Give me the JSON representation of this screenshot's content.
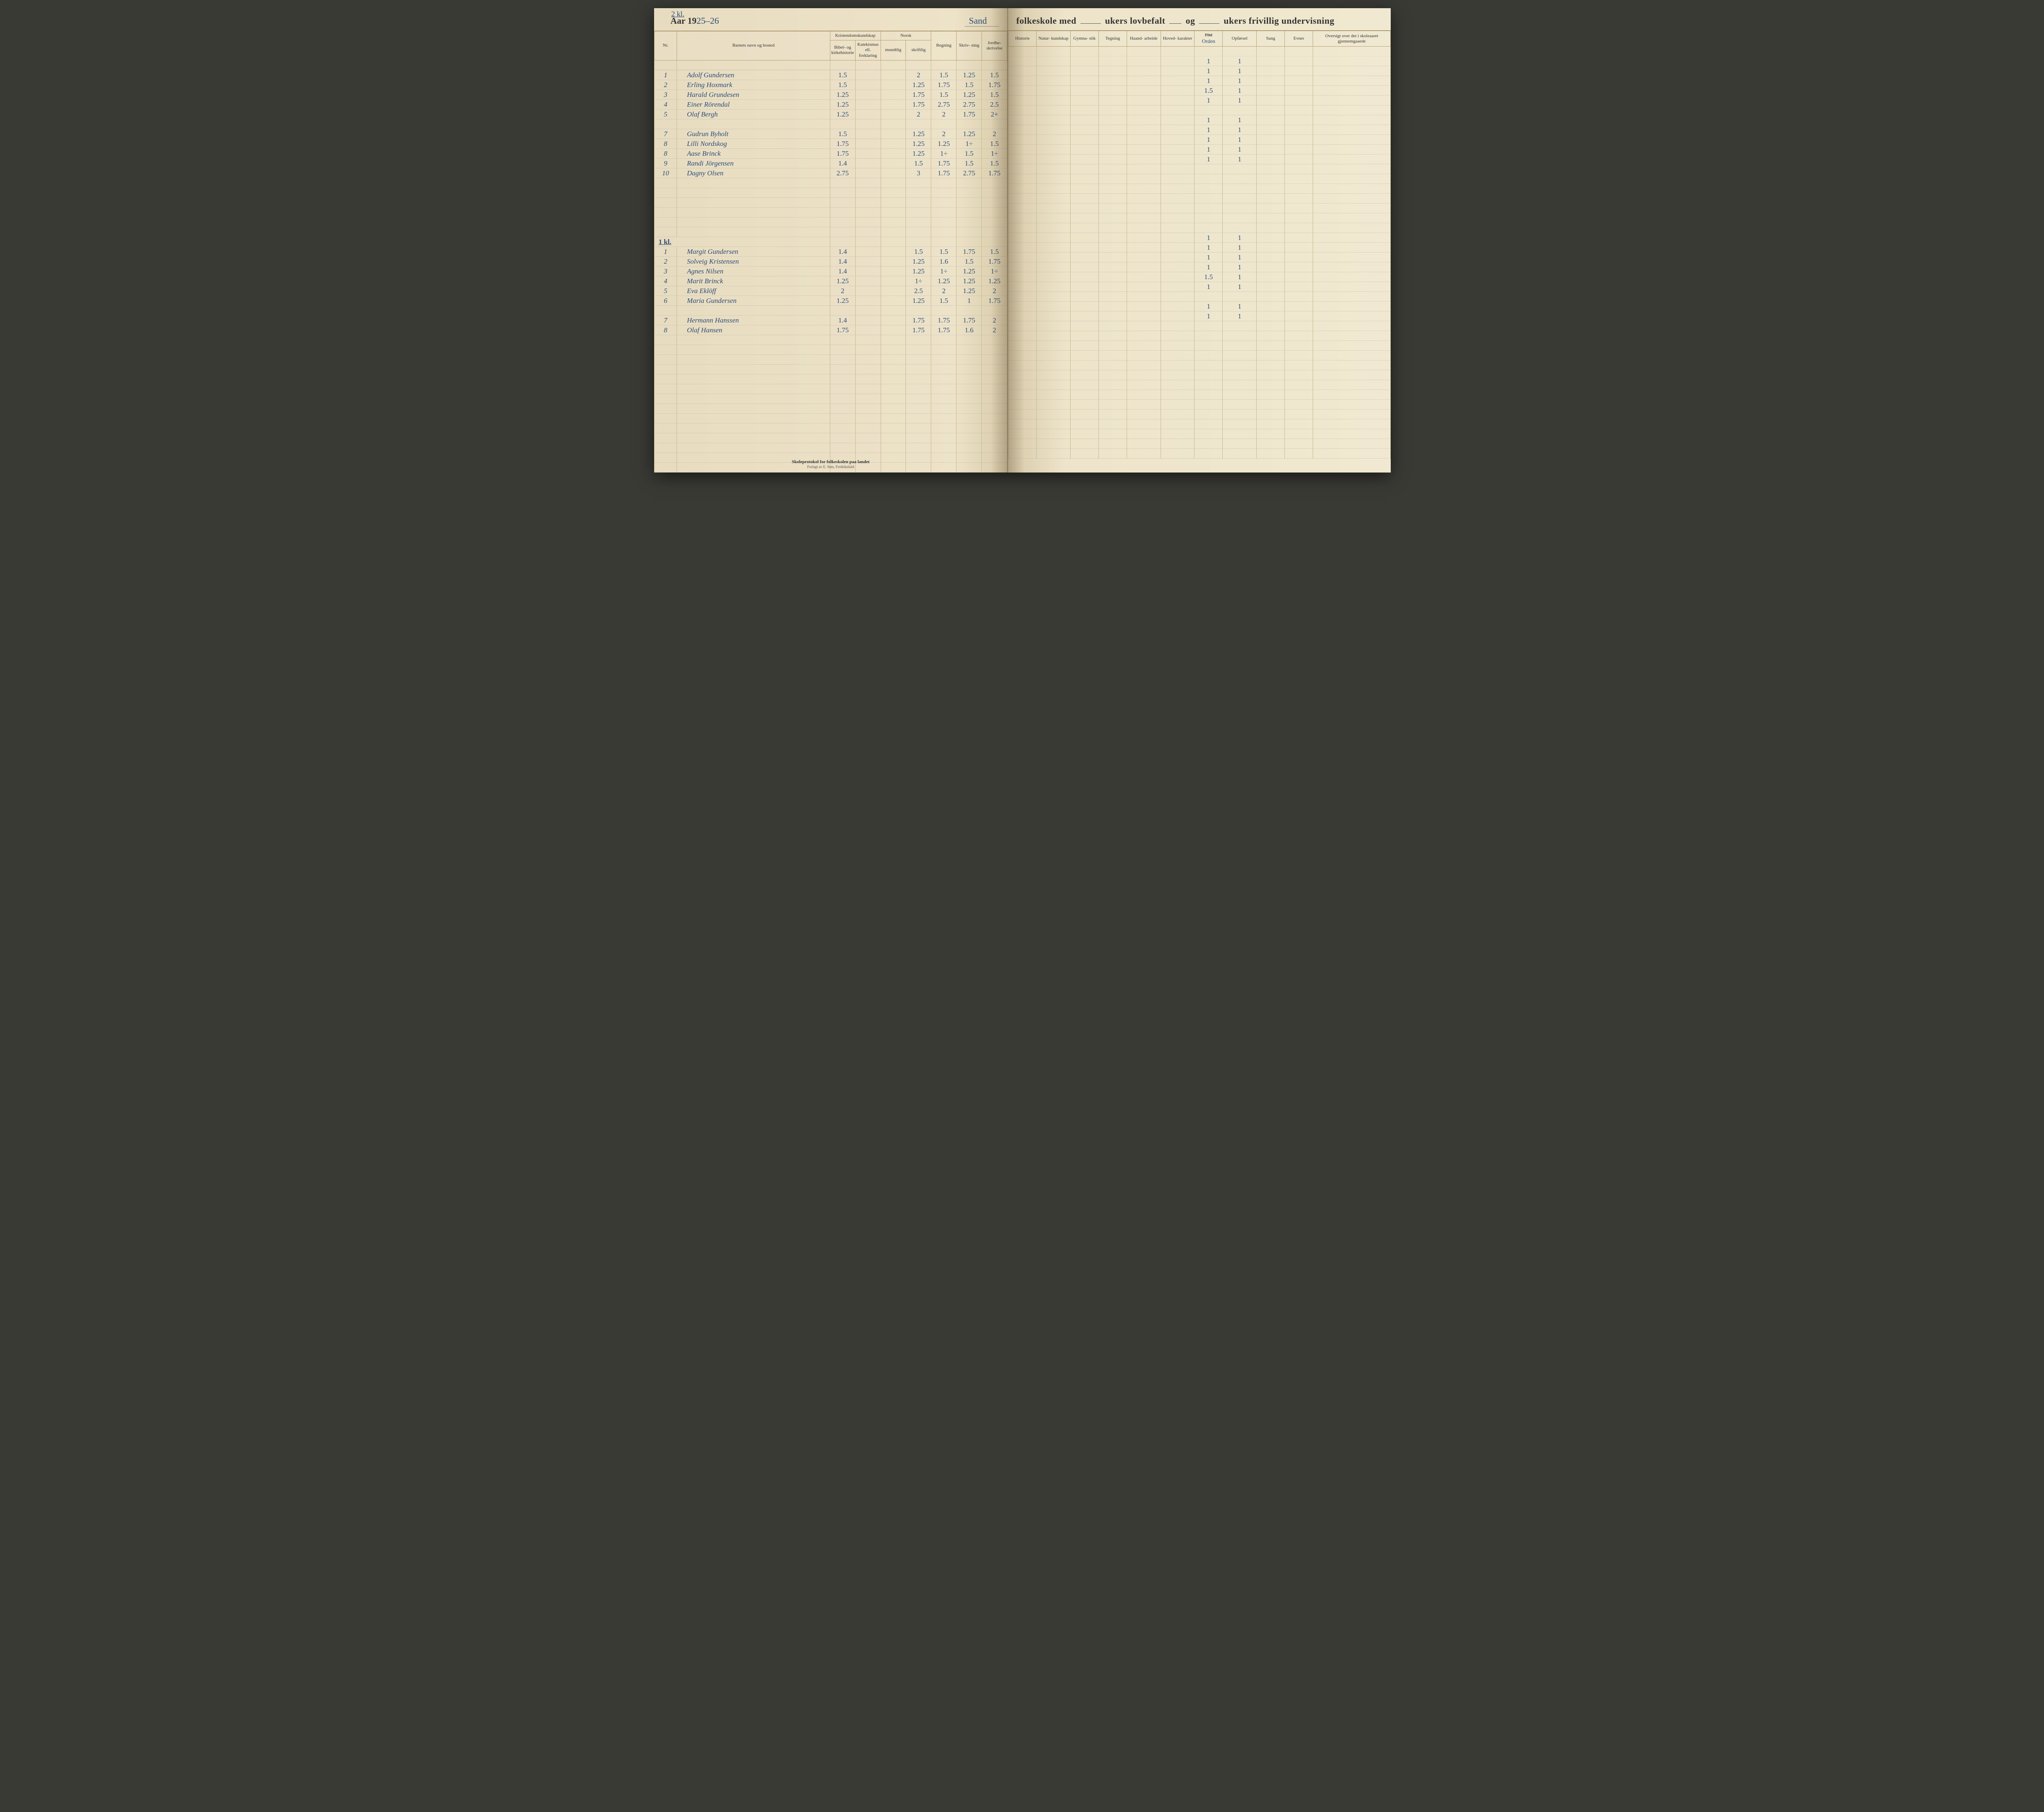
{
  "page_annotation_top": "2 kl.",
  "year_prefix": "Aar 19",
  "year_value": "25–26",
  "school_name": "Sand",
  "title_right_parts": {
    "a": "folkeskole med",
    "b": "ukers lovbefalt",
    "c": "og",
    "d": "ukers frivillig undervisning"
  },
  "columns_left": {
    "nr": "Nr.",
    "name": "Barnets navn og bosted",
    "kristendom": "Kristendomskundskap",
    "kristendom_sub1": "Bibel- og kirkehistorie",
    "kristendom_sub2": "Katekismus ell. forklaring",
    "norsk": "Norsk",
    "norsk_sub1": "mundtlig",
    "norsk_sub2": "skriftlig",
    "regning": "Regning",
    "skrivning": "Skriv-\nning",
    "jord": "Jordbe-\nskrivelse"
  },
  "columns_right": {
    "historie": "Historie",
    "natur": "Natur-\nkundskap",
    "gym": "Gymna-\nstik",
    "tegning": "Tegning",
    "haand": "Haand-\narbeide",
    "hoved": "Hoved-\nkarakter",
    "flid_struck": "Flid",
    "orden_hand": "Orden",
    "opforsel": "Opførsel",
    "sang": "Sang",
    "evner": "Evner",
    "oversigt": "Oversigt over det i\nskoleaaret gjennemgaaede"
  },
  "section2_label": "1 kl.",
  "rows_section1": [
    {
      "nr": "1",
      "name": "Adolf Gundersen",
      "g": [
        "1.5",
        "",
        "",
        "2",
        "1.5",
        "1.25",
        "1.5"
      ],
      "r": [
        "",
        "",
        "",
        "",
        "",
        "",
        "1",
        "1",
        "",
        "",
        ""
      ]
    },
    {
      "nr": "2",
      "name": "Erling Hoxmark",
      "g": [
        "1.5",
        "",
        "",
        "1.25",
        "1.75",
        "1.5",
        "1.75"
      ],
      "r": [
        "",
        "",
        "",
        "",
        "",
        "",
        "1",
        "1",
        "",
        "",
        ""
      ]
    },
    {
      "nr": "3",
      "name": "Harald Grundesen",
      "g": [
        "1.25",
        "",
        "",
        "1.75",
        "1.5",
        "1.25",
        "1.5"
      ],
      "r": [
        "",
        "",
        "",
        "",
        "",
        "",
        "1",
        "1",
        "",
        "",
        ""
      ]
    },
    {
      "nr": "4",
      "name": "Einer Rörendal",
      "g": [
        "1.25",
        "",
        "",
        "1.75",
        "2.75",
        "2.75",
        "2.5"
      ],
      "r": [
        "",
        "",
        "",
        "",
        "",
        "",
        "1.5",
        "1",
        "",
        "",
        ""
      ]
    },
    {
      "nr": "5",
      "name": "Olaf Bergh",
      "g": [
        "1.25",
        "",
        "",
        "2",
        "2",
        "1.75",
        "2+"
      ],
      "r": [
        "",
        "",
        "",
        "",
        "",
        "",
        "1",
        "1",
        "",
        "",
        ""
      ]
    },
    {
      "nr": "",
      "name": "",
      "g": [
        "",
        "",
        "",
        "",
        "",
        "",
        ""
      ],
      "r": [
        "",
        "",
        "",
        "",
        "",
        "",
        "",
        "",
        "",
        "",
        ""
      ]
    },
    {
      "nr": "7",
      "name": "Gudrun Byholt",
      "g": [
        "1.5",
        "",
        "",
        "1.25",
        "2",
        "1.25",
        "2"
      ],
      "r": [
        "",
        "",
        "",
        "",
        "",
        "",
        "1",
        "1",
        "",
        "",
        ""
      ]
    },
    {
      "nr": "8",
      "name": "Lilli Nordskog",
      "g": [
        "1.75",
        "",
        "",
        "1.25",
        "1.25",
        "1÷",
        "1.5"
      ],
      "r": [
        "",
        "",
        "",
        "",
        "",
        "",
        "1",
        "1",
        "",
        "",
        ""
      ]
    },
    {
      "nr": "8",
      "name": "Aase Brinck",
      "g": [
        "1.75",
        "",
        "",
        "1.25",
        "1÷",
        "1.5",
        "1÷"
      ],
      "r": [
        "",
        "",
        "",
        "",
        "",
        "",
        "1",
        "1",
        "",
        "",
        ""
      ]
    },
    {
      "nr": "9",
      "name": "Randi Jörgensen",
      "g": [
        "1.4",
        "",
        "",
        "1.5",
        "1.75",
        "1.5",
        "1.5"
      ],
      "r": [
        "",
        "",
        "",
        "",
        "",
        "",
        "1",
        "1",
        "",
        "",
        ""
      ]
    },
    {
      "nr": "10",
      "name": "Dagny Olsen",
      "g": [
        "2.75",
        "",
        "",
        "3",
        "1.75",
        "2.75",
        "1.75"
      ],
      "r": [
        "",
        "",
        "",
        "",
        "",
        "",
        "1",
        "1",
        "",
        "",
        ""
      ]
    }
  ],
  "rows_section2": [
    {
      "nr": "1",
      "name": "Margit Gundersen",
      "g": [
        "1.4",
        "",
        "",
        "1.5",
        "1.5",
        "1.75",
        "1.5"
      ],
      "r": [
        "",
        "",
        "",
        "",
        "",
        "",
        "1",
        "1",
        "",
        "",
        ""
      ]
    },
    {
      "nr": "2",
      "name": "Solveig Kristensen",
      "g": [
        "1.4",
        "",
        "",
        "1.25",
        "1.6",
        "1.5",
        "1.75"
      ],
      "r": [
        "",
        "",
        "",
        "",
        "",
        "",
        "1",
        "1",
        "",
        "",
        ""
      ]
    },
    {
      "nr": "3",
      "name": "Agnes Nilsen",
      "g": [
        "1.4",
        "",
        "",
        "1.25",
        "1÷",
        "1.25",
        "1÷"
      ],
      "r": [
        "",
        "",
        "",
        "",
        "",
        "",
        "1",
        "1",
        "",
        "",
        ""
      ]
    },
    {
      "nr": "4",
      "name": "Marit Brinck",
      "g": [
        "1.25",
        "",
        "",
        "1÷",
        "1.25",
        "1.25",
        "1.25"
      ],
      "r": [
        "",
        "",
        "",
        "",
        "",
        "",
        "1",
        "1",
        "",
        "",
        ""
      ]
    },
    {
      "nr": "5",
      "name": "Eva Eklöff",
      "g": [
        "2",
        "",
        "",
        "2.5",
        "2",
        "1.25",
        "2"
      ],
      "r": [
        "",
        "",
        "",
        "",
        "",
        "",
        "1.5",
        "1",
        "",
        "",
        ""
      ]
    },
    {
      "nr": "6",
      "name": "Maria Gundersen",
      "g": [
        "1.25",
        "",
        "",
        "1.25",
        "1.5",
        "1",
        "1.75"
      ],
      "r": [
        "",
        "",
        "",
        "",
        "",
        "",
        "1",
        "1",
        "",
        "",
        ""
      ]
    },
    {
      "nr": "",
      "name": "",
      "g": [
        "",
        "",
        "",
        "",
        "",
        "",
        ""
      ],
      "r": [
        "",
        "",
        "",
        "",
        "",
        "",
        "",
        "",
        "",
        "",
        ""
      ]
    },
    {
      "nr": "7",
      "name": "Hermann Hanssen",
      "g": [
        "1.4",
        "",
        "",
        "1.75",
        "1.75",
        "1.75",
        "2"
      ],
      "r": [
        "",
        "",
        "",
        "",
        "",
        "",
        "1",
        "1",
        "",
        "",
        ""
      ]
    },
    {
      "nr": "8",
      "name": "Olaf Hansen",
      "g": [
        "1.75",
        "",
        "",
        "1.75",
        "1.75",
        "1.6",
        "2"
      ],
      "r": [
        "",
        "",
        "",
        "",
        "",
        "",
        "1",
        "1",
        "",
        "",
        ""
      ]
    }
  ],
  "footer": {
    "line1": "Skoleprotokol for folkeskolen paa landet",
    "line2": "Forlagt av E. Sem, Fredrikshald"
  },
  "colors": {
    "paper": "#ede3c8",
    "ink_print": "#333333",
    "ink_hand": "#2b4c7a",
    "rule": "#b4a276"
  }
}
